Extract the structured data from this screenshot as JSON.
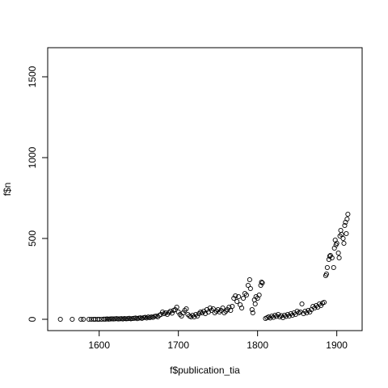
{
  "chart_data": {
    "type": "scatter",
    "title": "",
    "xlabel": "f$publication_tia",
    "ylabel": "f$n",
    "xlim": [
      1535,
      1932
    ],
    "ylim": [
      -70,
      1680
    ],
    "x_ticks": [
      {
        "value": 1600,
        "label": "1600"
      },
      {
        "value": 1700,
        "label": "1700"
      },
      {
        "value": 1800,
        "label": "1800"
      },
      {
        "value": 1900,
        "label": "1900"
      }
    ],
    "y_ticks": [
      {
        "value": 0,
        "label": "0"
      },
      {
        "value": 500,
        "label": "500"
      },
      {
        "value": 1000,
        "label": "1000"
      },
      {
        "value": 1500,
        "label": "1500"
      }
    ],
    "grid": false,
    "legend": "none",
    "marker": "open-circle",
    "points": [
      [
        1551,
        0
      ],
      [
        1566,
        0
      ],
      [
        1577,
        0
      ],
      [
        1580,
        0
      ],
      [
        1587,
        0
      ],
      [
        1590,
        0
      ],
      [
        1593,
        0
      ],
      [
        1595,
        0
      ],
      [
        1598,
        0
      ],
      [
        1600,
        0
      ],
      [
        1603,
        0
      ],
      [
        1606,
        1
      ],
      [
        1608,
        1
      ],
      [
        1610,
        2
      ],
      [
        1612,
        1
      ],
      [
        1614,
        2
      ],
      [
        1616,
        3
      ],
      [
        1618,
        2
      ],
      [
        1620,
        3
      ],
      [
        1622,
        4
      ],
      [
        1624,
        2
      ],
      [
        1626,
        3
      ],
      [
        1628,
        4
      ],
      [
        1630,
        2
      ],
      [
        1632,
        5
      ],
      [
        1634,
        3
      ],
      [
        1636,
        4
      ],
      [
        1638,
        6
      ],
      [
        1640,
        3
      ],
      [
        1642,
        5
      ],
      [
        1644,
        6
      ],
      [
        1646,
        8
      ],
      [
        1648,
        4
      ],
      [
        1650,
        7
      ],
      [
        1652,
        9
      ],
      [
        1654,
        6
      ],
      [
        1656,
        10
      ],
      [
        1658,
        12
      ],
      [
        1660,
        8
      ],
      [
        1662,
        14
      ],
      [
        1664,
        10
      ],
      [
        1666,
        15
      ],
      [
        1668,
        12
      ],
      [
        1670,
        18
      ],
      [
        1672,
        20
      ],
      [
        1674,
        15
      ],
      [
        1676,
        25
      ],
      [
        1678,
        30
      ],
      [
        1680,
        45
      ],
      [
        1682,
        35
      ],
      [
        1684,
        40
      ],
      [
        1686,
        30
      ],
      [
        1688,
        42
      ],
      [
        1690,
        50
      ],
      [
        1692,
        38
      ],
      [
        1694,
        55
      ],
      [
        1696,
        60
      ],
      [
        1698,
        75
      ],
      [
        1700,
        45
      ],
      [
        1702,
        30
      ],
      [
        1704,
        20
      ],
      [
        1706,
        40
      ],
      [
        1708,
        55
      ],
      [
        1710,
        65
      ],
      [
        1712,
        30
      ],
      [
        1714,
        20
      ],
      [
        1716,
        15
      ],
      [
        1718,
        25
      ],
      [
        1720,
        15
      ],
      [
        1722,
        30
      ],
      [
        1724,
        20
      ],
      [
        1726,
        35
      ],
      [
        1728,
        45
      ],
      [
        1730,
        40
      ],
      [
        1732,
        50
      ],
      [
        1734,
        35
      ],
      [
        1736,
        60
      ],
      [
        1738,
        45
      ],
      [
        1740,
        70
      ],
      [
        1742,
        55
      ],
      [
        1744,
        65
      ],
      [
        1746,
        40
      ],
      [
        1748,
        50
      ],
      [
        1750,
        60
      ],
      [
        1752,
        45
      ],
      [
        1754,
        55
      ],
      [
        1756,
        70
      ],
      [
        1758,
        40
      ],
      [
        1760,
        50
      ],
      [
        1762,
        60
      ],
      [
        1764,
        75
      ],
      [
        1766,
        55
      ],
      [
        1768,
        80
      ],
      [
        1770,
        130
      ],
      [
        1772,
        145
      ],
      [
        1774,
        110
      ],
      [
        1776,
        140
      ],
      [
        1778,
        90
      ],
      [
        1780,
        70
      ],
      [
        1782,
        130
      ],
      [
        1784,
        160
      ],
      [
        1786,
        150
      ],
      [
        1788,
        210
      ],
      [
        1790,
        245
      ],
      [
        1791,
        190
      ],
      [
        1793,
        60
      ],
      [
        1794,
        40
      ],
      [
        1796,
        120
      ],
      [
        1797,
        95
      ],
      [
        1798,
        140
      ],
      [
        1800,
        130
      ],
      [
        1802,
        150
      ],
      [
        1804,
        210
      ],
      [
        1805,
        230
      ],
      [
        1806,
        225
      ],
      [
        1810,
        5
      ],
      [
        1812,
        10
      ],
      [
        1814,
        15
      ],
      [
        1816,
        8
      ],
      [
        1818,
        20
      ],
      [
        1820,
        12
      ],
      [
        1822,
        25
      ],
      [
        1824,
        18
      ],
      [
        1826,
        30
      ],
      [
        1828,
        15
      ],
      [
        1830,
        22
      ],
      [
        1832,
        10
      ],
      [
        1834,
        25
      ],
      [
        1836,
        18
      ],
      [
        1838,
        30
      ],
      [
        1840,
        20
      ],
      [
        1842,
        35
      ],
      [
        1844,
        25
      ],
      [
        1846,
        40
      ],
      [
        1848,
        30
      ],
      [
        1850,
        50
      ],
      [
        1852,
        40
      ],
      [
        1854,
        45
      ],
      [
        1856,
        95
      ],
      [
        1858,
        35
      ],
      [
        1860,
        50
      ],
      [
        1862,
        40
      ],
      [
        1864,
        55
      ],
      [
        1866,
        45
      ],
      [
        1868,
        60
      ],
      [
        1870,
        80
      ],
      [
        1872,
        70
      ],
      [
        1874,
        85
      ],
      [
        1876,
        75
      ],
      [
        1878,
        95
      ],
      [
        1880,
        85
      ],
      [
        1882,
        100
      ],
      [
        1884,
        105
      ],
      [
        1886,
        270
      ],
      [
        1887,
        280
      ],
      [
        1888,
        320
      ],
      [
        1890,
        370
      ],
      [
        1891,
        390
      ],
      [
        1892,
        395
      ],
      [
        1894,
        380
      ],
      [
        1896,
        320
      ],
      [
        1897,
        440
      ],
      [
        1898,
        490
      ],
      [
        1899,
        460
      ],
      [
        1900,
        470
      ],
      [
        1902,
        410
      ],
      [
        1903,
        380
      ],
      [
        1904,
        515
      ],
      [
        1905,
        550
      ],
      [
        1906,
        525
      ],
      [
        1908,
        500
      ],
      [
        1909,
        470
      ],
      [
        1910,
        580
      ],
      [
        1911,
        600
      ],
      [
        1912,
        530
      ],
      [
        1913,
        620
      ],
      [
        1914,
        650
      ]
    ]
  }
}
